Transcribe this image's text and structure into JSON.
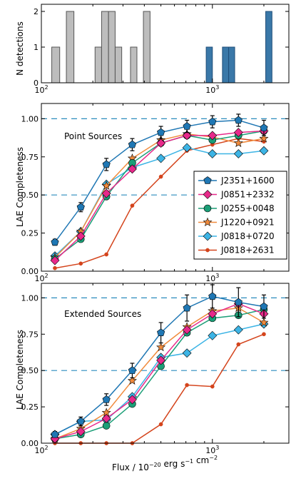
{
  "colors": {
    "J2351+1600": "#1f77b4",
    "J0851+2332": "#e7298a",
    "J0255+0048": "#1b9e77",
    "J1220+0921": "#f08a3c",
    "J0818+0720": "#3cb4e5",
    "J0818+2631": "#d4441c",
    "hist_gray": "#bdbdbd",
    "hist_blue": "#3a78a8",
    "dashed_line": "#2b8cbe"
  },
  "chart_data": [
    {
      "type": "bar",
      "panel": "top",
      "ylabel": "N detections",
      "xscale": "log",
      "xlim": [
        100,
        2800
      ],
      "ylim": [
        0,
        2.2
      ],
      "yticks": [
        "0",
        "1",
        "2"
      ],
      "xticks": [
        "10^2",
        "10^3"
      ],
      "bins": [
        {
          "x0": 115,
          "x1": 128,
          "count": 1,
          "group": "gray"
        },
        {
          "x0": 140,
          "x1": 155,
          "count": 2,
          "group": "gray"
        },
        {
          "x0": 206,
          "x1": 225,
          "count": 1,
          "group": "gray"
        },
        {
          "x0": 225,
          "x1": 247,
          "count": 2,
          "group": "gray"
        },
        {
          "x0": 247,
          "x1": 270,
          "count": 2,
          "group": "gray"
        },
        {
          "x0": 270,
          "x1": 295,
          "count": 1,
          "group": "gray"
        },
        {
          "x0": 332,
          "x1": 362,
          "count": 1,
          "group": "gray"
        },
        {
          "x0": 395,
          "x1": 432,
          "count": 2,
          "group": "gray"
        },
        {
          "x0": 920,
          "x1": 1000,
          "count": 1,
          "group": "blue"
        },
        {
          "x0": 1145,
          "x1": 1245,
          "count": 1,
          "group": "blue"
        },
        {
          "x0": 1245,
          "x1": 1350,
          "count": 1,
          "group": "blue"
        },
        {
          "x0": 2050,
          "x1": 2230,
          "count": 2,
          "group": "blue"
        }
      ]
    },
    {
      "type": "line",
      "panel": "middle",
      "annotation": "Point Sources",
      "ylabel": "LAE Completeness",
      "xscale": "log",
      "xlim": [
        100,
        2800
      ],
      "ylim": [
        0,
        1.1
      ],
      "yticks": [
        "0.00",
        "0.25",
        "0.50",
        "0.75",
        "1.00"
      ],
      "xticks": [
        "10^2",
        "10^3"
      ],
      "hlines": [
        0.5,
        1.0
      ],
      "x": [
        120,
        170,
        240,
        340,
        500,
        710,
        1000,
        1420,
        2000
      ],
      "series": [
        {
          "name": "J2351+1600",
          "marker": "pentagon",
          "values": [
            0.19,
            0.42,
            0.7,
            0.83,
            0.91,
            0.95,
            0.98,
            0.99,
            0.94
          ],
          "errors": [
            0.02,
            0.03,
            0.04,
            0.04,
            0.04,
            0.04,
            0.04,
            0.04,
            0.05
          ]
        },
        {
          "name": "J0851+2332",
          "marker": "diamond",
          "values": [
            0.07,
            0.23,
            0.51,
            0.67,
            0.84,
            0.89,
            0.89,
            0.91,
            0.92
          ]
        },
        {
          "name": "J0255+0048",
          "marker": "circle",
          "values": [
            0.08,
            0.21,
            0.49,
            0.71,
            0.84,
            0.89,
            0.86,
            0.89,
            0.92
          ]
        },
        {
          "name": "J1220+0921",
          "marker": "star",
          "values": [
            0.09,
            0.26,
            0.56,
            0.74,
            0.86,
            0.9,
            0.88,
            0.84,
            0.87
          ]
        },
        {
          "name": "J0818+0720",
          "marker": "diamond",
          "values": [
            0.1,
            0.26,
            0.57,
            0.68,
            0.74,
            0.81,
            0.77,
            0.77,
            0.79
          ]
        },
        {
          "name": "J0818+2631",
          "marker": "dot",
          "values": [
            0.02,
            0.05,
            0.11,
            0.43,
            0.62,
            0.79,
            0.83,
            0.87,
            0.85
          ]
        }
      ]
    },
    {
      "type": "line",
      "panel": "bottom",
      "annotation": "Extended Sources",
      "ylabel": "LAE Completeness",
      "xlabel": "Flux / 10^-20 erg s^-1 cm^-2",
      "xscale": "log",
      "xlim": [
        100,
        2800
      ],
      "ylim": [
        0,
        1.1
      ],
      "yticks": [
        "0.00",
        "0.25",
        "0.50",
        "0.75",
        "1.00"
      ],
      "xticks": [
        "10^2",
        "10^3"
      ],
      "hlines": [
        0.5,
        1.0
      ],
      "x": [
        120,
        170,
        240,
        340,
        500,
        710,
        1000,
        1420,
        2000
      ],
      "series": [
        {
          "name": "J2351+1600",
          "values": [
            0.06,
            0.15,
            0.3,
            0.5,
            0.76,
            0.93,
            1.01,
            0.97,
            0.94
          ],
          "errors": [
            0.02,
            0.03,
            0.04,
            0.05,
            0.07,
            0.09,
            0.08,
            0.1,
            0.08
          ]
        },
        {
          "name": "J0851+2332",
          "values": [
            0.03,
            0.08,
            0.17,
            0.3,
            0.57,
            0.78,
            0.89,
            0.96,
            0.89
          ]
        },
        {
          "name": "J0255+0048",
          "values": [
            0.03,
            0.06,
            0.12,
            0.27,
            0.53,
            0.76,
            0.86,
            0.88,
            0.92
          ]
        },
        {
          "name": "J1220+0921",
          "values": [
            0.03,
            0.1,
            0.21,
            0.43,
            0.66,
            0.8,
            0.91,
            0.93,
            0.83
          ]
        },
        {
          "name": "J0818+0720",
          "values": [
            0.06,
            0.15,
            0.16,
            0.32,
            0.59,
            0.62,
            0.74,
            0.78,
            0.82
          ]
        },
        {
          "name": "J0818+2631",
          "values": [
            0.0,
            0.0,
            0.0,
            0.0,
            0.13,
            0.4,
            0.39,
            0.68,
            0.75
          ]
        }
      ]
    }
  ],
  "legend": {
    "entries": [
      "J2351+1600",
      "J0851+2332",
      "J0255+0048",
      "J1220+0921",
      "J0818+0720",
      "J0818+2631"
    ]
  }
}
